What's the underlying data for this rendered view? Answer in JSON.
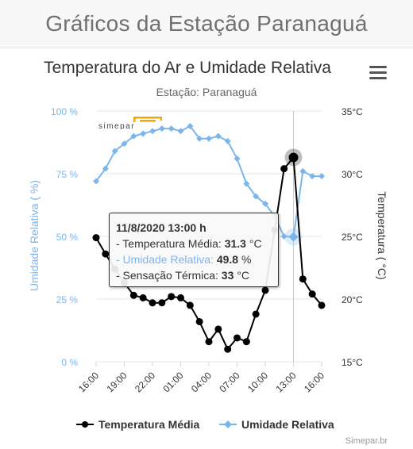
{
  "page": {
    "title": "Gráficos da Estação Paranaguá"
  },
  "toolbar": {
    "menu_icon": "hamburger-menu-icon"
  },
  "logo": {
    "text": "simepar",
    "accent_color": "#f5a800"
  },
  "credits": "Simepar.br",
  "colors": {
    "temperature": "#000000",
    "humidity": "#7cb5ec",
    "grid": "#e6e6e6",
    "left_axis_label": "#7cb5ec"
  },
  "chart_data": {
    "type": "line",
    "title": "Temperatura do Ar e Umidade Relativa",
    "subtitle": "Estação: Paranaguá",
    "x_ticks": [
      "16:00",
      "19:00",
      "22:00",
      "01:00",
      "04:00",
      "07:00",
      "10:00",
      "13:00",
      "16:00"
    ],
    "x_range_hours": [
      0,
      24
    ],
    "y_left": {
      "label": "Umidade Relativa ( %)",
      "ticks": [
        "0 %",
        "25 %",
        "50 %",
        "75 %",
        "100 %"
      ],
      "range": [
        0,
        100
      ]
    },
    "y_right": {
      "label": "Temperatura ( °C)",
      "ticks": [
        "15°C",
        "20°C",
        "25°C",
        "30°C",
        "35°C"
      ],
      "range": [
        15,
        35
      ]
    },
    "legend": {
      "position": "bottom-center"
    },
    "grid": true,
    "crosshair_hour": 21,
    "series": [
      {
        "name": "Temperatura Média",
        "axis": "right",
        "marker": "circle",
        "x": [
          0,
          1,
          2,
          3,
          4,
          5,
          6,
          7,
          8,
          9,
          10,
          11,
          12,
          13,
          14,
          15,
          16,
          17,
          18,
          19,
          20,
          21,
          22,
          23,
          24
        ],
        "values": [
          24.9,
          23.6,
          22.4,
          21.3,
          20.3,
          20.1,
          19.7,
          19.7,
          20.2,
          20.1,
          19.5,
          18.2,
          16.6,
          17.6,
          16.0,
          16.9,
          16.6,
          18.8,
          20.7,
          25.5,
          30.4,
          31.3,
          21.6,
          20.4,
          19.5
        ]
      },
      {
        "name": "Umidade Relativa",
        "axis": "left",
        "marker": "diamond",
        "x": [
          0,
          1,
          2,
          3,
          4,
          5,
          6,
          7,
          8,
          9,
          10,
          11,
          12,
          13,
          14,
          15,
          16,
          17,
          18,
          19,
          20,
          21,
          22,
          23,
          24
        ],
        "values": [
          72,
          77,
          84,
          87,
          90,
          91,
          92,
          93,
          93,
          92,
          94,
          89,
          89,
          90,
          88,
          81,
          71,
          66,
          63,
          58,
          50,
          49.8,
          76,
          74,
          74
        ]
      }
    ]
  },
  "tooltip": {
    "title": "11/8/2020 13:00 h",
    "temp_label": "- Temperatura Média:",
    "temp_value": "31.3",
    "temp_unit": "°C",
    "hum_label": "- Umidade Relativa:",
    "hum_value": "49.8",
    "hum_unit": "%",
    "feel_label": "- Sensação Térmica:",
    "feel_value": "33",
    "feel_unit": "°C"
  }
}
